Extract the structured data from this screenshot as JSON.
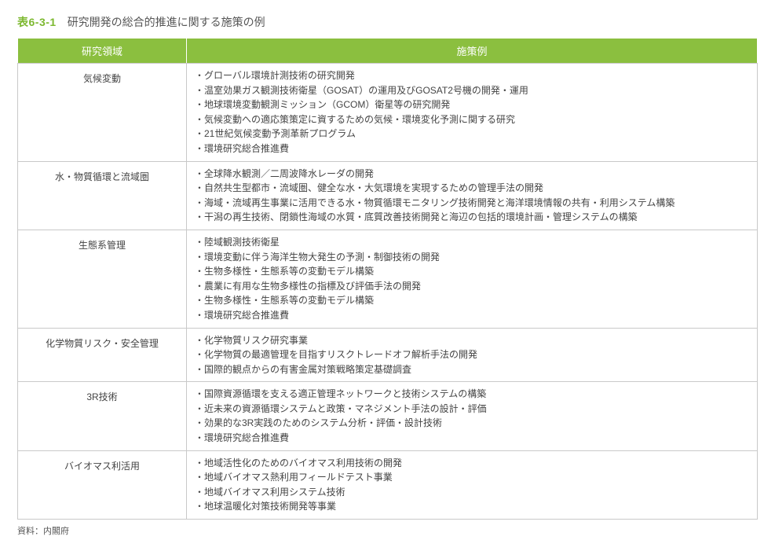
{
  "header": {
    "table_id": "表6-3-1",
    "title": "研究開発の総合的推進に関する施策の例"
  },
  "columns": [
    "研究領域",
    "施策例"
  ],
  "colors": {
    "accent": "#8bbf3f",
    "accent_text": "#ffffff",
    "border": "#c9c9c9",
    "title_id": "#7cb82f",
    "body_text": "#444444"
  },
  "rows": [
    {
      "domain": "気候変動",
      "items": [
        "・グローバル環境計測技術の研究開発",
        "・温室効果ガス観測技術衛星（GOSAT）の運用及びGOSAT2号機の開発・運用",
        "・地球環境変動観測ミッション（GCOM）衛星等の研究開発",
        "・気候変動への適応策策定に資するための気候・環境変化予測に関する研究",
        "・21世紀気候変動予測革新プログラム",
        "・環境研究総合推進費"
      ]
    },
    {
      "domain": "水・物質循環と流域圏",
      "items": [
        "・全球降水観測／二周波降水レーダの開発",
        "・自然共生型都市・流域圏、健全な水・大気環境を実現するための管理手法の開発",
        "・海域・流域再生事業に活用できる水・物質循環モニタリング技術開発と海洋環境情報の共有・利用システム構築",
        "・干潟の再生技術、閉鎖性海域の水質・底質改善技術開発と海辺の包括的環境計画・管理システムの構築"
      ]
    },
    {
      "domain": "生態系管理",
      "items": [
        "・陸域観測技術衛星",
        "・環境変動に伴う海洋生物大発生の予測・制御技術の開発",
        "・生物多様性・生態系等の変動モデル構築",
        "・農業に有用な生物多様性の指標及び評価手法の開発",
        "・生物多様性・生態系等の変動モデル構築",
        "・環境研究総合推進費"
      ]
    },
    {
      "domain": "化学物質リスク・安全管理",
      "items": [
        "・化学物質リスク研究事業",
        "・化学物質の最適管理を目指すリスクトレードオフ解析手法の開発",
        "・国際的観点からの有害金属対策戦略策定基礎調査"
      ]
    },
    {
      "domain": "3R技術",
      "items": [
        "・国際資源循環を支える適正管理ネットワークと技術システムの構築",
        "・近未来の資源循環システムと政策・マネジメント手法の設計・評価",
        "・効果的な3R実践のためのシステム分析・評価・設計技術",
        "・環境研究総合推進費"
      ]
    },
    {
      "domain": "バイオマス利活用",
      "items": [
        "・地域活性化のためのバイオマス利用技術の開発",
        "・地域バイオマス熱利用フィールドテスト事業",
        "・地域バイオマス利用システム技術",
        "・地球温暖化対策技術開発等事業"
      ]
    }
  ],
  "source": "資料：内閣府"
}
